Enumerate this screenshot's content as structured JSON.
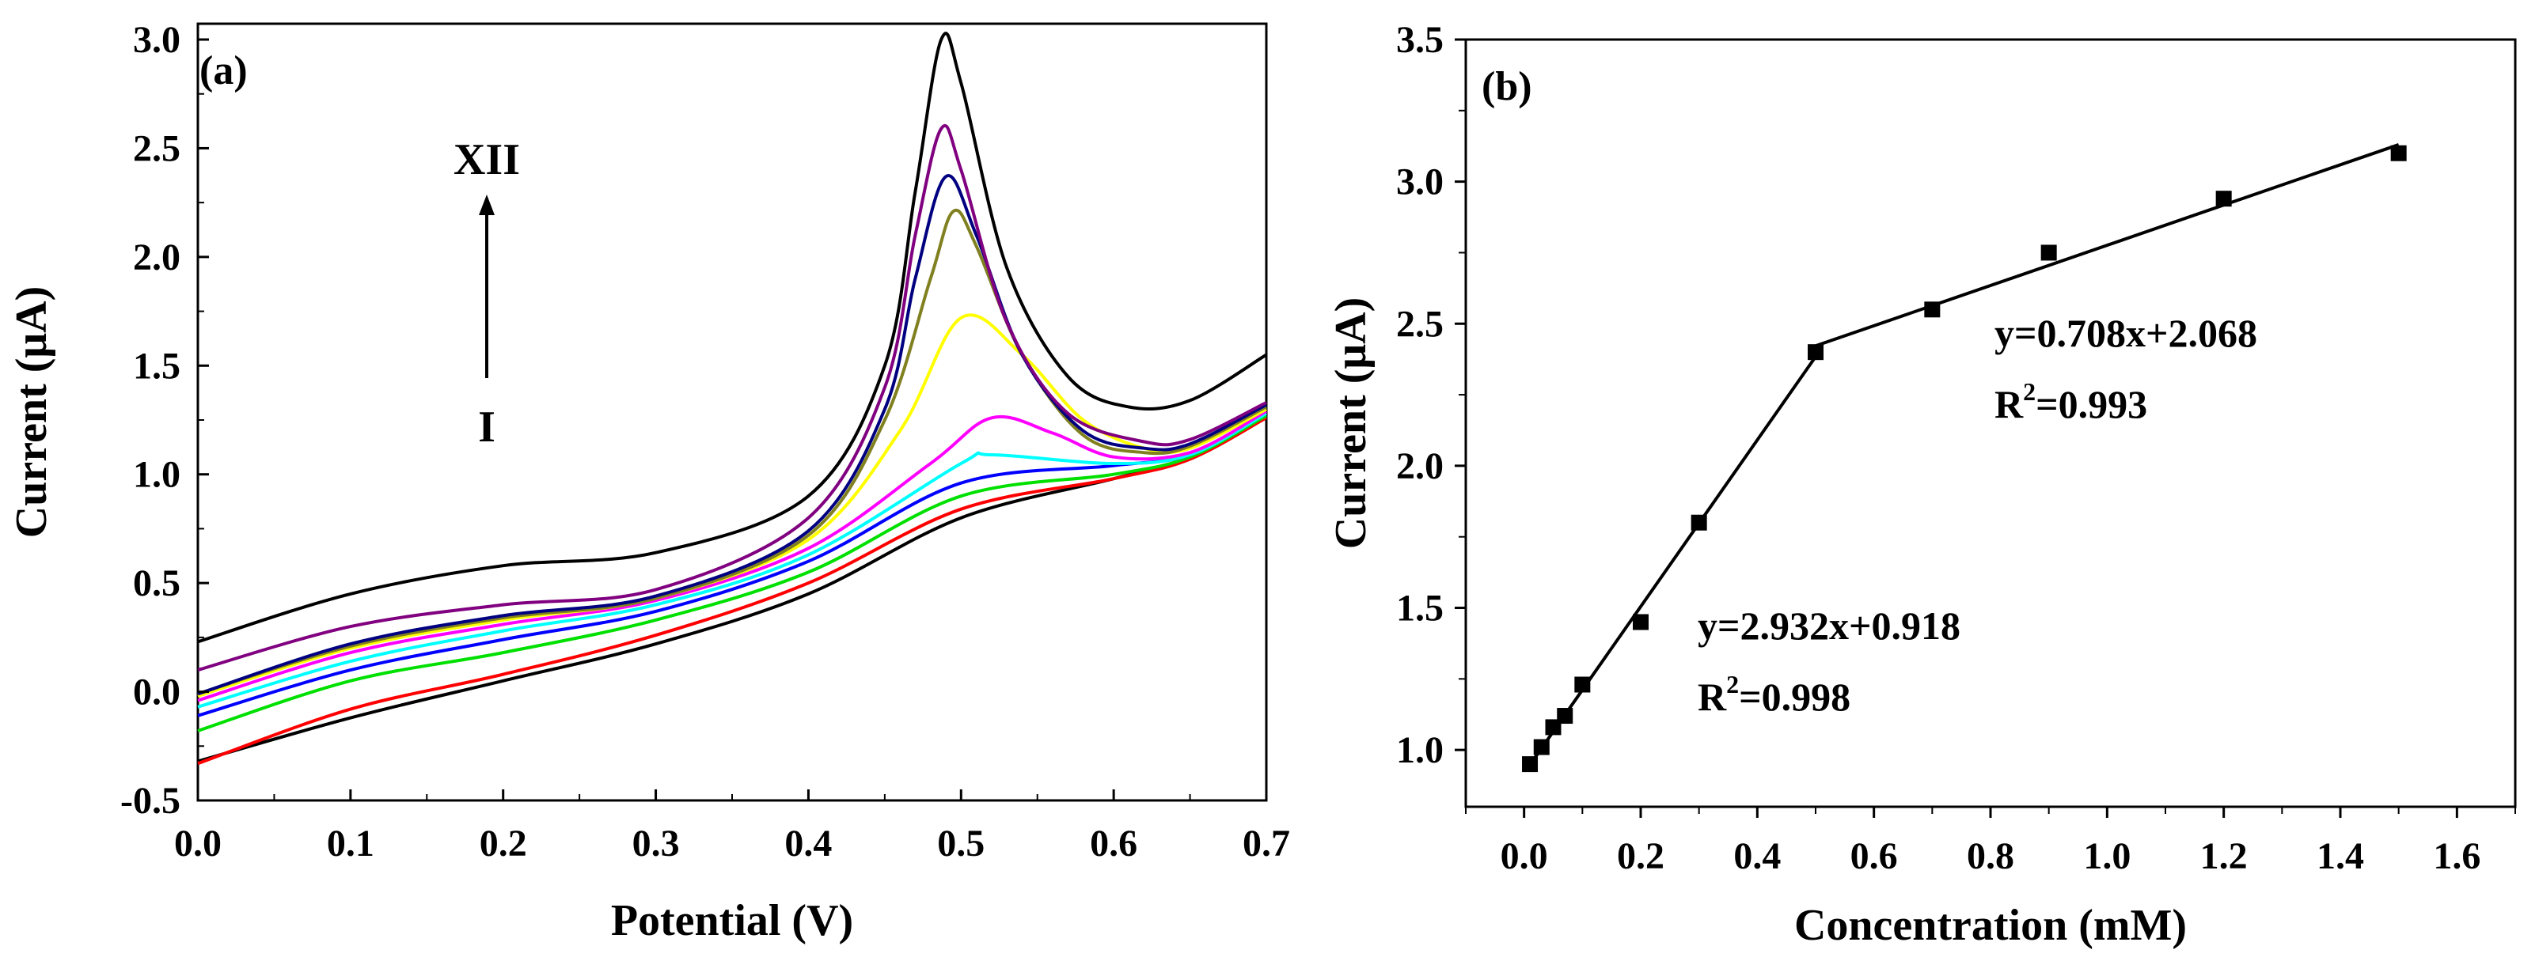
{
  "chart_data": [
    {
      "type": "line",
      "panel_label": "(a)",
      "xlabel": "Potential (V)",
      "ylabel": "Current (μA)",
      "xlim": [
        0.0,
        0.7
      ],
      "ylim": [
        -0.5,
        3.0
      ],
      "x_ticks": [
        "0.0",
        "0.1",
        "0.2",
        "0.3",
        "0.4",
        "0.5",
        "0.6",
        "0.7"
      ],
      "y_ticks": [
        "-0.5",
        "0.0",
        "0.5",
        "1.0",
        "1.5",
        "2.0",
        "2.5",
        "3.0"
      ],
      "grid": false,
      "annotation_top": "XII",
      "annotation_bottom": "I",
      "series": [
        {
          "color": "#000000",
          "points": [
            [
              0.0,
              -0.32
            ],
            [
              0.1,
              -0.12
            ],
            [
              0.2,
              0.05
            ],
            [
              0.3,
              0.22
            ],
            [
              0.4,
              0.45
            ],
            [
              0.5,
              0.8
            ],
            [
              0.6,
              0.98
            ],
            [
              0.65,
              1.08
            ],
            [
              0.7,
              1.28
            ]
          ]
        },
        {
          "color": "#ff0000",
          "points": [
            [
              0.0,
              -0.33
            ],
            [
              0.1,
              -0.08
            ],
            [
              0.2,
              0.08
            ],
            [
              0.3,
              0.26
            ],
            [
              0.4,
              0.5
            ],
            [
              0.5,
              0.84
            ],
            [
              0.6,
              0.98
            ],
            [
              0.65,
              1.07
            ],
            [
              0.7,
              1.26
            ]
          ]
        },
        {
          "color": "#00e000",
          "points": [
            [
              0.0,
              -0.18
            ],
            [
              0.1,
              0.05
            ],
            [
              0.2,
              0.18
            ],
            [
              0.3,
              0.33
            ],
            [
              0.4,
              0.55
            ],
            [
              0.5,
              0.9
            ],
            [
              0.6,
              1.0
            ],
            [
              0.65,
              1.08
            ],
            [
              0.7,
              1.27
            ]
          ]
        },
        {
          "color": "#0000ff",
          "points": [
            [
              0.0,
              -0.11
            ],
            [
              0.1,
              0.1
            ],
            [
              0.2,
              0.24
            ],
            [
              0.3,
              0.37
            ],
            [
              0.4,
              0.6
            ],
            [
              0.5,
              0.96
            ],
            [
              0.6,
              1.04
            ],
            [
              0.65,
              1.09
            ],
            [
              0.7,
              1.28
            ]
          ]
        },
        {
          "color": "#00ffff",
          "points": [
            [
              0.0,
              -0.07
            ],
            [
              0.1,
              0.14
            ],
            [
              0.2,
              0.28
            ],
            [
              0.3,
              0.4
            ],
            [
              0.4,
              0.63
            ],
            [
              0.5,
              1.05
            ],
            [
              0.52,
              1.09
            ],
            [
              0.6,
              1.05
            ],
            [
              0.65,
              1.09
            ],
            [
              0.7,
              1.28
            ]
          ]
        },
        {
          "color": "#ff00ff",
          "points": [
            [
              0.0,
              -0.04
            ],
            [
              0.1,
              0.18
            ],
            [
              0.2,
              0.31
            ],
            [
              0.3,
              0.42
            ],
            [
              0.4,
              0.66
            ],
            [
              0.48,
              1.05
            ],
            [
              0.52,
              1.26
            ],
            [
              0.56,
              1.19
            ],
            [
              0.6,
              1.08
            ],
            [
              0.65,
              1.1
            ],
            [
              0.7,
              1.29
            ]
          ]
        },
        {
          "color": "#ffff00",
          "points": [
            [
              0.0,
              -0.02
            ],
            [
              0.1,
              0.2
            ],
            [
              0.2,
              0.33
            ],
            [
              0.3,
              0.43
            ],
            [
              0.4,
              0.7
            ],
            [
              0.46,
              1.2
            ],
            [
              0.5,
              1.72
            ],
            [
              0.54,
              1.55
            ],
            [
              0.58,
              1.25
            ],
            [
              0.62,
              1.12
            ],
            [
              0.65,
              1.12
            ],
            [
              0.7,
              1.3
            ]
          ]
        },
        {
          "color": "#808020",
          "points": [
            [
              0.0,
              -0.01
            ],
            [
              0.1,
              0.21
            ],
            [
              0.2,
              0.34
            ],
            [
              0.3,
              0.43
            ],
            [
              0.4,
              0.72
            ],
            [
              0.45,
              1.25
            ],
            [
              0.48,
              1.9
            ],
            [
              0.495,
              2.21
            ],
            [
              0.51,
              2.05
            ],
            [
              0.54,
              1.55
            ],
            [
              0.58,
              1.18
            ],
            [
              0.62,
              1.1
            ],
            [
              0.65,
              1.13
            ],
            [
              0.7,
              1.31
            ]
          ]
        },
        {
          "color": "#000080",
          "points": [
            [
              0.0,
              -0.01
            ],
            [
              0.1,
              0.22
            ],
            [
              0.2,
              0.35
            ],
            [
              0.3,
              0.44
            ],
            [
              0.4,
              0.74
            ],
            [
              0.45,
              1.3
            ],
            [
              0.47,
              1.9
            ],
            [
              0.49,
              2.37
            ],
            [
              0.51,
              2.1
            ],
            [
              0.54,
              1.55
            ],
            [
              0.58,
              1.2
            ],
            [
              0.62,
              1.12
            ],
            [
              0.65,
              1.14
            ],
            [
              0.7,
              1.32
            ]
          ]
        },
        {
          "color": "#800080",
          "points": [
            [
              0.0,
              0.1
            ],
            [
              0.1,
              0.3
            ],
            [
              0.2,
              0.4
            ],
            [
              0.3,
              0.47
            ],
            [
              0.4,
              0.8
            ],
            [
              0.45,
              1.4
            ],
            [
              0.47,
              2.1
            ],
            [
              0.487,
              2.59
            ],
            [
              0.5,
              2.4
            ],
            [
              0.53,
              1.7
            ],
            [
              0.57,
              1.28
            ],
            [
              0.62,
              1.15
            ],
            [
              0.65,
              1.16
            ],
            [
              0.7,
              1.33
            ]
          ]
        },
        {
          "color": "#000000",
          "points": [
            [
              0.0,
              0.23
            ],
            [
              0.1,
              0.45
            ],
            [
              0.2,
              0.58
            ],
            [
              0.3,
              0.64
            ],
            [
              0.4,
              0.9
            ],
            [
              0.45,
              1.5
            ],
            [
              0.47,
              2.3
            ],
            [
              0.487,
              3.0
            ],
            [
              0.5,
              2.8
            ],
            [
              0.53,
              1.95
            ],
            [
              0.57,
              1.45
            ],
            [
              0.61,
              1.31
            ],
            [
              0.65,
              1.34
            ],
            [
              0.7,
              1.55
            ]
          ]
        }
      ]
    },
    {
      "type": "scatter",
      "panel_label": "(b)",
      "xlabel": "Concentration (mM)",
      "ylabel": "Current (μA)",
      "xlim": [
        -0.1,
        1.7
      ],
      "ylim": [
        0.8,
        3.5
      ],
      "x_ticks": [
        "0.0",
        "0.2",
        "0.4",
        "0.6",
        "0.8",
        "1.0",
        "1.2",
        "1.4",
        "1.6"
      ],
      "y_ticks": [
        "1.0",
        "1.5",
        "2.0",
        "2.5",
        "3.0",
        "3.5"
      ],
      "grid": false,
      "points": [
        [
          0.01,
          0.95
        ],
        [
          0.03,
          1.01
        ],
        [
          0.05,
          1.08
        ],
        [
          0.07,
          1.12
        ],
        [
          0.1,
          1.23
        ],
        [
          0.2,
          1.45
        ],
        [
          0.3,
          1.8
        ],
        [
          0.5,
          2.4
        ],
        [
          0.7,
          2.55
        ],
        [
          0.9,
          2.75
        ],
        [
          1.2,
          2.94
        ],
        [
          1.5,
          3.1
        ]
      ],
      "fits": [
        {
          "slope": 2.932,
          "intercept": 0.918,
          "x_range": [
            0.01,
            0.5
          ],
          "equation": "y=2.932x+0.918",
          "r2_prefix": "R",
          "r2_sup": "2",
          "r2_value": "=0.998"
        },
        {
          "slope": 0.708,
          "intercept": 2.068,
          "x_range": [
            0.5,
            1.5
          ],
          "equation": "y=0.708x+2.068",
          "r2_prefix": "R",
          "r2_sup": "2",
          "r2_value": "=0.993"
        }
      ]
    }
  ]
}
